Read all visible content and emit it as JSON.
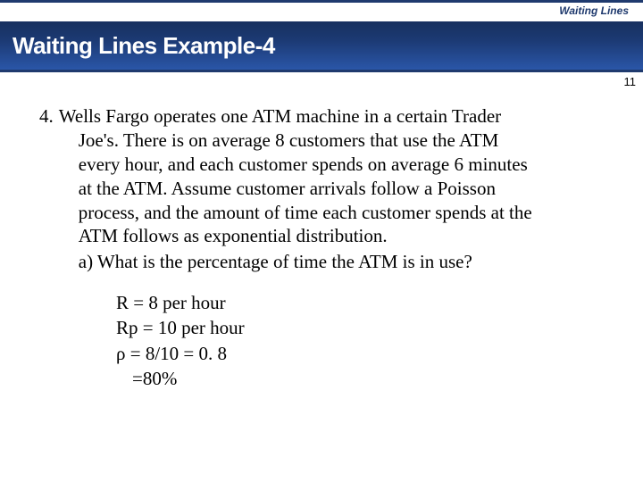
{
  "course_label": "Waiting Lines",
  "title": "Waiting Lines Example-4",
  "page_number": "11",
  "problem": {
    "number": "4.",
    "text_lines": [
      "Wells Fargo operates one ATM machine in a certain Trader",
      "Joe's.  There is on average 8 customers that use the ATM",
      "every hour, and each customer spends on average 6 minutes",
      "at the ATM.  Assume customer arrivals follow a Poisson",
      "process, and the amount of time each customer spends at the",
      "ATM follows as exponential distribution."
    ],
    "sub_question": "a) What is the percentage of time the ATM is in use?"
  },
  "solution": {
    "lines": [
      "R = 8 per hour",
      "Rp = 10  per hour",
      "ρ = 8/10 = 0. 8"
    ],
    "final": "=80%"
  },
  "colors": {
    "brand_dark": "#1f3a6e",
    "gradient_top": "#17305f",
    "gradient_bottom": "#2a56a8",
    "text": "#000000",
    "bg": "#ffffff"
  }
}
